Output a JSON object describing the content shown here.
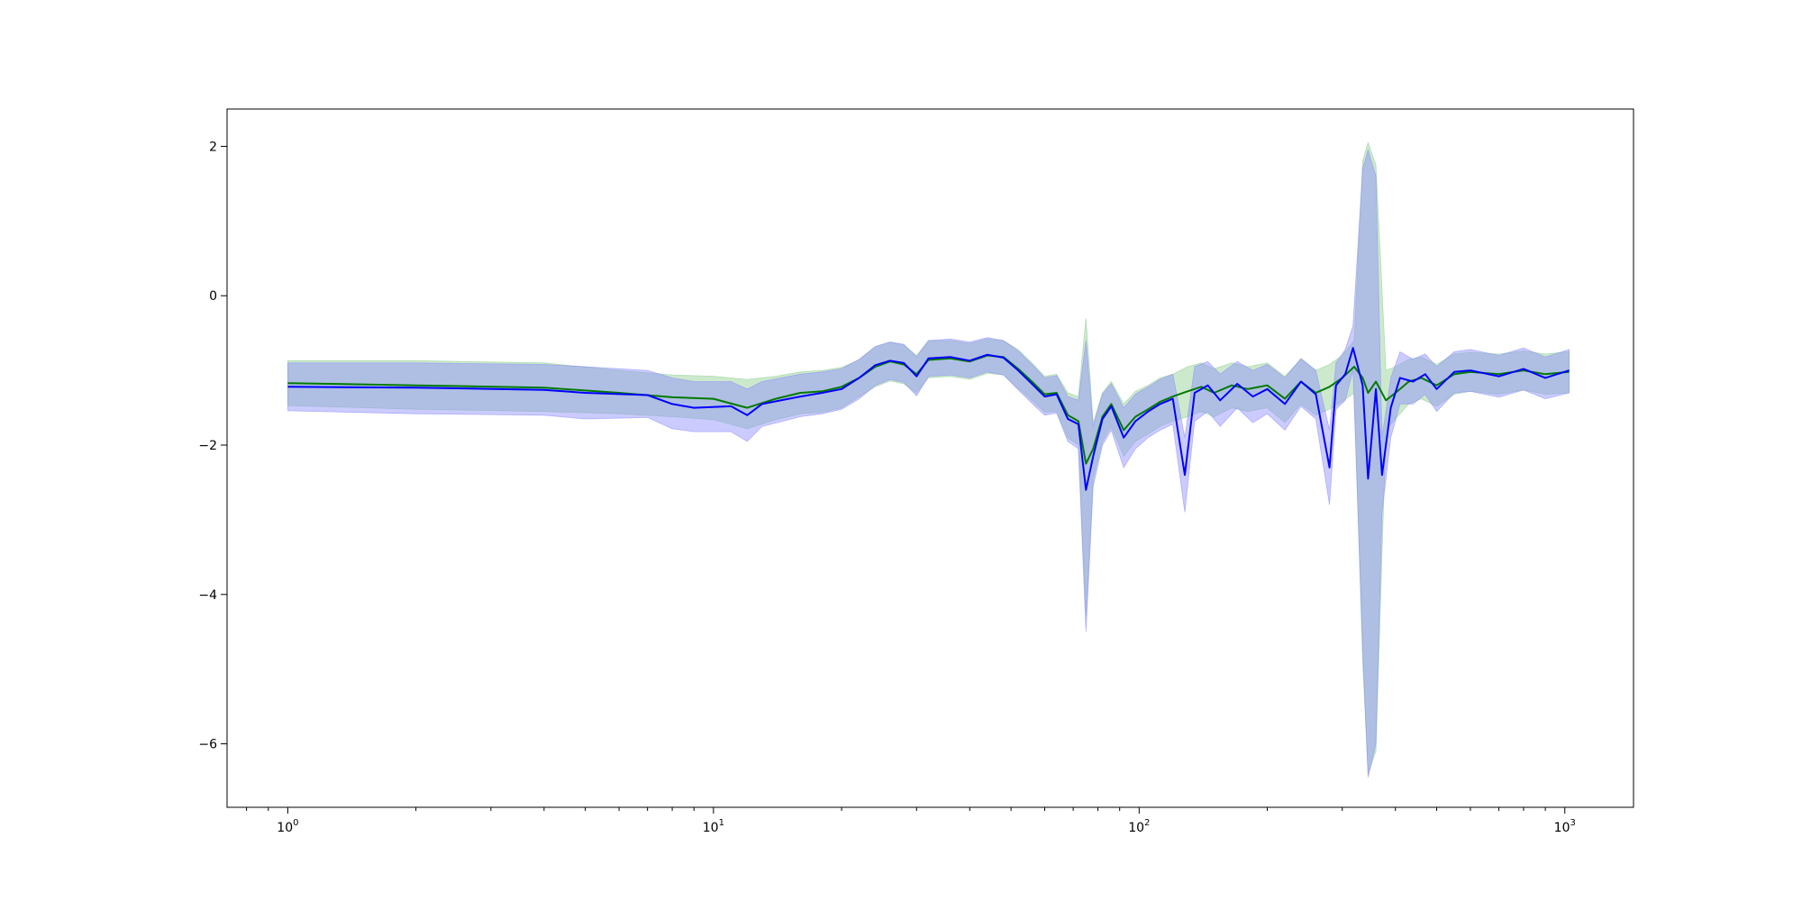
{
  "chart_data": {
    "type": "line",
    "title": "",
    "xlabel": "",
    "ylabel": "",
    "x_scale": "log",
    "xlim": [
      0.72,
      1450
    ],
    "ylim": [
      -6.85,
      2.5
    ],
    "grid": false,
    "x_ticks": [
      {
        "value": 1,
        "base": "10",
        "exp": "0"
      },
      {
        "value": 10,
        "base": "10",
        "exp": "1"
      },
      {
        "value": 100,
        "base": "10",
        "exp": "2"
      },
      {
        "value": 1000,
        "base": "10",
        "exp": "3"
      }
    ],
    "y_ticks": [
      {
        "value": 2,
        "label": "2"
      },
      {
        "value": 0,
        "label": "0"
      },
      {
        "value": -2,
        "label": "−2"
      },
      {
        "value": -4,
        "label": "−4"
      },
      {
        "value": -6,
        "label": "−6"
      }
    ],
    "colors": {
      "green_line": "#007a00",
      "blue_line": "#0000ff",
      "green_band": "#8fcf8f",
      "blue_band": "#8c8cff"
    },
    "series": [
      {
        "color": "green",
        "points": [
          [
            1,
            -1.17,
            -0.87,
            -1.47
          ],
          [
            2,
            -1.2,
            -0.87,
            -1.52
          ],
          [
            4,
            -1.23,
            -0.9,
            -1.55
          ],
          [
            6,
            -1.3,
            -1.0,
            -1.58
          ],
          [
            8,
            -1.36,
            -1.06,
            -1.62
          ],
          [
            10,
            -1.38,
            -1.08,
            -1.66
          ],
          [
            12,
            -1.5,
            -1.12,
            -1.78
          ],
          [
            14,
            -1.38,
            -1.08,
            -1.66
          ],
          [
            16,
            -1.3,
            -1.02,
            -1.58
          ],
          [
            18,
            -1.28,
            -1.0,
            -1.56
          ],
          [
            20,
            -1.22,
            -0.96,
            -1.5
          ],
          [
            22,
            -1.1,
            -0.86,
            -1.35
          ],
          [
            24,
            -0.95,
            -0.68,
            -1.22
          ],
          [
            26,
            -0.88,
            -0.62,
            -1.14
          ],
          [
            28,
            -0.92,
            -0.66,
            -1.18
          ],
          [
            30,
            -1.05,
            -0.8,
            -1.3
          ],
          [
            32,
            -0.86,
            -0.6,
            -1.1
          ],
          [
            36,
            -0.84,
            -0.6,
            -1.08
          ],
          [
            40,
            -0.88,
            -0.64,
            -1.12
          ],
          [
            44,
            -0.8,
            -0.58,
            -1.04
          ],
          [
            48,
            -0.82,
            -0.6,
            -1.06
          ],
          [
            52,
            -0.98,
            -0.72,
            -1.24
          ],
          [
            56,
            -1.15,
            -0.9,
            -1.4
          ],
          [
            60,
            -1.32,
            -1.08,
            -1.56
          ],
          [
            64,
            -1.3,
            -1.05,
            -1.55
          ],
          [
            68,
            -1.6,
            -1.3,
            -1.9
          ],
          [
            72,
            -1.68,
            -1.35,
            -2.0
          ],
          [
            75,
            -2.25,
            -0.3,
            -4.3
          ],
          [
            78,
            -2.05,
            -1.7,
            -2.45
          ],
          [
            82,
            -1.62,
            -1.3,
            -1.95
          ],
          [
            86,
            -1.45,
            -1.15,
            -1.75
          ],
          [
            92,
            -1.8,
            -1.45,
            -2.15
          ],
          [
            98,
            -1.62,
            -1.28,
            -1.95
          ],
          [
            105,
            -1.52,
            -1.2,
            -1.85
          ],
          [
            112,
            -1.42,
            -1.1,
            -1.75
          ],
          [
            120,
            -1.35,
            -1.05,
            -1.68
          ],
          [
            130,
            -1.28,
            -0.95,
            -1.62
          ],
          [
            140,
            -1.22,
            -0.9,
            -1.55
          ],
          [
            150,
            -1.3,
            -0.98,
            -1.62
          ],
          [
            165,
            -1.2,
            -0.9,
            -1.5
          ],
          [
            180,
            -1.25,
            -0.95,
            -1.55
          ],
          [
            200,
            -1.2,
            -0.9,
            -1.5
          ],
          [
            220,
            -1.38,
            -1.08,
            -1.7
          ],
          [
            240,
            -1.15,
            -0.85,
            -1.45
          ],
          [
            260,
            -1.3,
            -1.0,
            -1.6
          ],
          [
            280,
            -1.22,
            -0.92,
            -1.52
          ],
          [
            300,
            -1.1,
            -0.8,
            -1.42
          ],
          [
            320,
            -0.95,
            -0.6,
            -1.3
          ],
          [
            335,
            -1.1,
            1.8,
            -4.9
          ],
          [
            345,
            -1.3,
            2.05,
            -6.4
          ],
          [
            360,
            -1.15,
            1.75,
            -6.1
          ],
          [
            380,
            -1.4,
            -1.0,
            -1.8
          ],
          [
            400,
            -1.3,
            -0.95,
            -1.65
          ],
          [
            430,
            -1.15,
            -0.85,
            -1.45
          ],
          [
            460,
            -1.1,
            -0.82,
            -1.38
          ],
          [
            500,
            -1.2,
            -0.92,
            -1.48
          ],
          [
            550,
            -1.05,
            -0.78,
            -1.32
          ],
          [
            600,
            -1.02,
            -0.76,
            -1.28
          ],
          [
            700,
            -1.05,
            -0.78,
            -1.32
          ],
          [
            800,
            -1.0,
            -0.74,
            -1.26
          ],
          [
            900,
            -1.05,
            -0.78,
            -1.32
          ],
          [
            1024,
            -1.02,
            -0.75,
            -1.3
          ]
        ]
      },
      {
        "color": "blue",
        "points": [
          [
            1,
            -1.22,
            -0.9,
            -1.54
          ],
          [
            2,
            -1.23,
            -0.9,
            -1.58
          ],
          [
            4,
            -1.26,
            -0.92,
            -1.6
          ],
          [
            5,
            -1.3,
            -0.95,
            -1.65
          ],
          [
            7,
            -1.33,
            -1.0,
            -1.63
          ],
          [
            8,
            -1.45,
            -1.1,
            -1.78
          ],
          [
            9,
            -1.5,
            -1.15,
            -1.82
          ],
          [
            11,
            -1.48,
            -1.15,
            -1.82
          ],
          [
            12,
            -1.6,
            -1.25,
            -1.95
          ],
          [
            13,
            -1.45,
            -1.15,
            -1.75
          ],
          [
            16,
            -1.35,
            -1.05,
            -1.62
          ],
          [
            18,
            -1.3,
            -1.02,
            -1.58
          ],
          [
            20,
            -1.25,
            -0.98,
            -1.52
          ],
          [
            22,
            -1.1,
            -0.85,
            -1.38
          ],
          [
            24,
            -0.93,
            -0.68,
            -1.2
          ],
          [
            26,
            -0.87,
            -0.62,
            -1.12
          ],
          [
            28,
            -0.9,
            -0.65,
            -1.16
          ],
          [
            30,
            -1.08,
            -0.82,
            -1.34
          ],
          [
            32,
            -0.84,
            -0.6,
            -1.08
          ],
          [
            36,
            -0.82,
            -0.58,
            -1.06
          ],
          [
            40,
            -0.87,
            -0.62,
            -1.1
          ],
          [
            44,
            -0.79,
            -0.56,
            -1.02
          ],
          [
            48,
            -0.83,
            -0.6,
            -1.06
          ],
          [
            52,
            -1.0,
            -0.74,
            -1.26
          ],
          [
            56,
            -1.18,
            -0.92,
            -1.44
          ],
          [
            60,
            -1.35,
            -1.1,
            -1.6
          ],
          [
            64,
            -1.32,
            -1.07,
            -1.57
          ],
          [
            68,
            -1.65,
            -1.35,
            -1.95
          ],
          [
            72,
            -1.72,
            -1.4,
            -2.05
          ],
          [
            75,
            -2.6,
            -0.6,
            -4.5
          ],
          [
            78,
            -2.15,
            -1.75,
            -2.55
          ],
          [
            82,
            -1.65,
            -1.32,
            -2.0
          ],
          [
            86,
            -1.48,
            -1.18,
            -1.8
          ],
          [
            92,
            -1.9,
            -1.5,
            -2.3
          ],
          [
            98,
            -1.68,
            -1.32,
            -2.05
          ],
          [
            105,
            -1.55,
            -1.22,
            -1.9
          ],
          [
            112,
            -1.45,
            -1.12,
            -1.8
          ],
          [
            120,
            -1.38,
            -1.05,
            -1.72
          ],
          [
            128,
            -2.4,
            -1.9,
            -2.9
          ],
          [
            135,
            -1.3,
            -0.95,
            -1.68
          ],
          [
            145,
            -1.2,
            -0.88,
            -1.55
          ],
          [
            155,
            -1.4,
            -1.05,
            -1.75
          ],
          [
            170,
            -1.18,
            -0.88,
            -1.5
          ],
          [
            185,
            -1.35,
            -1.0,
            -1.7
          ],
          [
            200,
            -1.25,
            -0.92,
            -1.58
          ],
          [
            220,
            -1.45,
            -1.1,
            -1.8
          ],
          [
            240,
            -1.15,
            -0.84,
            -1.48
          ],
          [
            260,
            -1.32,
            -1.0,
            -1.65
          ],
          [
            280,
            -2.3,
            -1.8,
            -2.8
          ],
          [
            290,
            -1.2,
            -0.9,
            -1.52
          ],
          [
            305,
            -1.05,
            -0.72,
            -1.4
          ],
          [
            318,
            -0.7,
            -0.4,
            -1.0
          ],
          [
            335,
            -1.2,
            1.7,
            -4.7
          ],
          [
            345,
            -2.45,
            1.95,
            -6.45
          ],
          [
            360,
            -1.25,
            1.6,
            -6.0
          ],
          [
            372,
            -2.4,
            -1.9,
            -2.9
          ],
          [
            390,
            -1.5,
            -1.1,
            -1.9
          ],
          [
            410,
            -1.1,
            -0.75,
            -1.45
          ],
          [
            440,
            -1.15,
            -0.85,
            -1.45
          ],
          [
            470,
            -1.05,
            -0.78,
            -1.32
          ],
          [
            500,
            -1.25,
            -0.95,
            -1.55
          ],
          [
            550,
            -1.02,
            -0.75,
            -1.3
          ],
          [
            600,
            -1.0,
            -0.72,
            -1.28
          ],
          [
            700,
            -1.08,
            -0.8,
            -1.36
          ],
          [
            800,
            -0.98,
            -0.7,
            -1.26
          ],
          [
            900,
            -1.1,
            -0.82,
            -1.38
          ],
          [
            1024,
            -1.0,
            -0.72,
            -1.3
          ]
        ]
      }
    ]
  }
}
